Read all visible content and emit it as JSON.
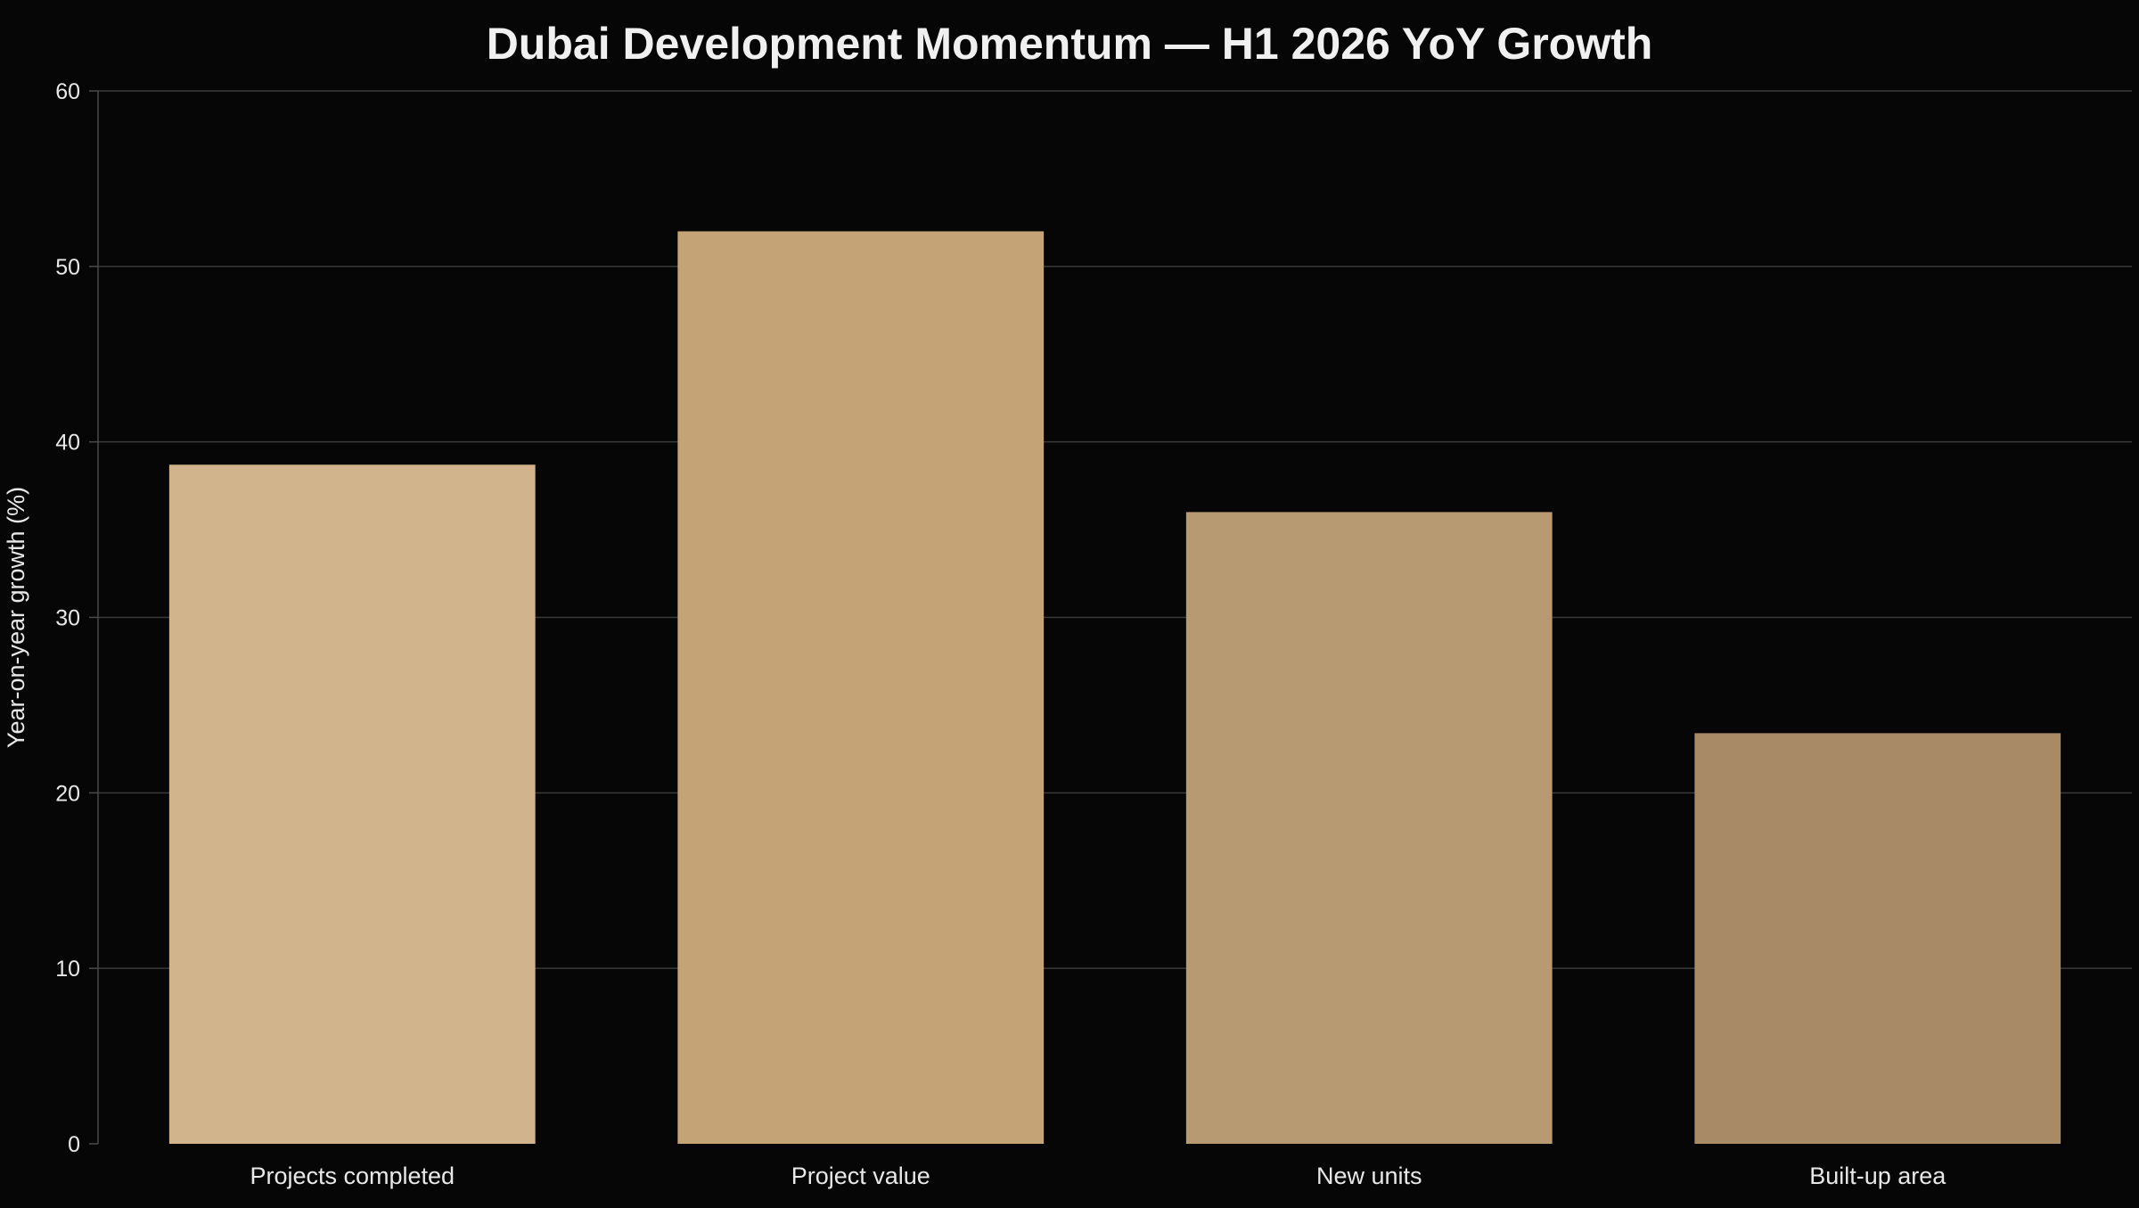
{
  "chart_data": {
    "type": "bar",
    "title": "Dubai Development Momentum — H1 2026 YoY Growth",
    "xlabel": "",
    "ylabel": "Year-on-year growth (%)",
    "categories": [
      "Projects completed",
      "Project value",
      "New units",
      "Built-up area"
    ],
    "values": [
      38.7,
      52.0,
      36.0,
      23.4
    ],
    "ylim": [
      0,
      60
    ],
    "yticks": [
      0,
      10,
      20,
      30,
      40,
      50,
      60
    ],
    "grid": true,
    "bar_colors": [
      "#d2b48c",
      "#c4a476",
      "#b89a72",
      "#a88b66"
    ],
    "colors": {
      "background": "#060606",
      "grid": "#3a3a3a",
      "axis": "#4a4a4a",
      "text": "#e8e8e8"
    }
  }
}
